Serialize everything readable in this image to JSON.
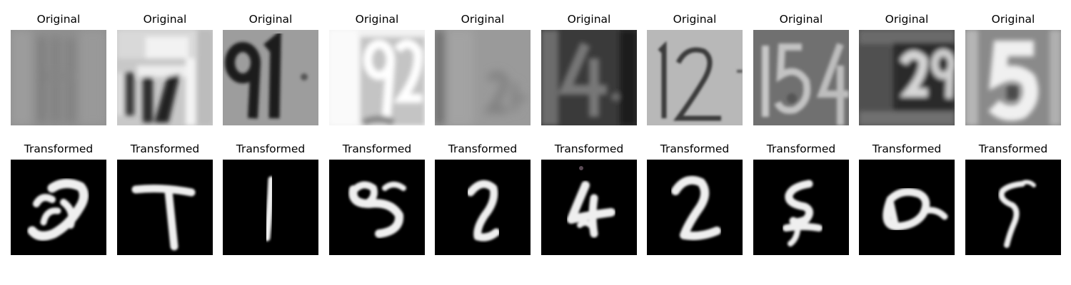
{
  "titles": {
    "original": "Original",
    "transformed": "Transformed"
  },
  "original_images": [
    {
      "name": "original-image-1"
    },
    {
      "name": "original-image-2"
    },
    {
      "name": "original-image-3"
    },
    {
      "name": "original-image-4"
    },
    {
      "name": "original-image-5"
    },
    {
      "name": "original-image-6"
    },
    {
      "name": "original-image-7"
    },
    {
      "name": "original-image-8"
    },
    {
      "name": "original-image-9"
    },
    {
      "name": "original-image-10"
    }
  ],
  "transformed_images": [
    {
      "name": "transformed-image-1"
    },
    {
      "name": "transformed-image-2"
    },
    {
      "name": "transformed-image-3"
    },
    {
      "name": "transformed-image-4"
    },
    {
      "name": "transformed-image-5"
    },
    {
      "name": "transformed-image-6"
    },
    {
      "name": "transformed-image-7"
    },
    {
      "name": "transformed-image-8"
    },
    {
      "name": "transformed-image-9"
    },
    {
      "name": "transformed-image-10"
    }
  ]
}
